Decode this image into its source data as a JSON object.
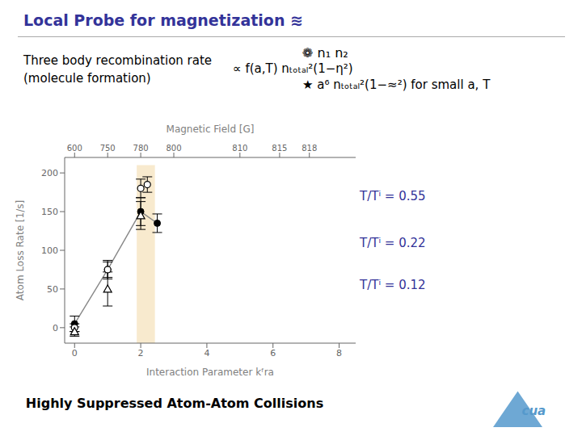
{
  "chart_data": {
    "type": "scatter",
    "title": "Local Probe for magnetization ≋",
    "title_color": "#333399",
    "xlabel": "Interaction Parameter kᶠra",
    "ylabel": "Atom Loss Rate [1/s]",
    "xlim": [
      -0.3,
      8.5
    ],
    "xticks": [
      0,
      2,
      4,
      6,
      8
    ],
    "ylim": [
      -20,
      220
    ],
    "yticks": [
      0,
      50,
      100,
      150,
      200
    ],
    "top_axis": {
      "label": "Magnetic Field [G]",
      "ticks": [
        {
          "value": 0.0,
          "label": "600"
        },
        {
          "value": 1.0,
          "label": "750"
        },
        {
          "value": 2.0,
          "label": "780"
        },
        {
          "value": 3.0,
          "label": "800"
        },
        {
          "value": 5.0,
          "label": "810"
        },
        {
          "value": 6.2,
          "label": "815"
        },
        {
          "value": 7.1,
          "label": "818"
        }
      ]
    },
    "series": [
      {
        "type": "line",
        "color": "#888888",
        "line_style": "solid",
        "x": [
          0.0,
          1.0,
          2.0,
          2.5
        ],
        "values": [
          5,
          75,
          150,
          135
        ]
      },
      {
        "type": "scatter",
        "marker": "circle",
        "color": "#000000",
        "x": [
          0.0,
          1.0,
          2.0,
          2.5
        ],
        "values": [
          5,
          75,
          150,
          135
        ],
        "errors": [
          10,
          12,
          18,
          12
        ]
      },
      {
        "type": "scatter",
        "marker": "open_circle",
        "color": "#000000",
        "x": [
          0.0,
          1.0,
          2.0,
          2.2
        ],
        "values": [
          0,
          75,
          180,
          185
        ],
        "errors": [
          5,
          10,
          12,
          10
        ]
      },
      {
        "type": "scatter",
        "marker": "open_triangle",
        "color": "#000000",
        "x": [
          0.0,
          1.0,
          2.0
        ],
        "values": [
          -5,
          50,
          145
        ],
        "errors": [
          6,
          22,
          18
        ]
      }
    ],
    "shaded_region": {
      "x": [
        1.88,
        2.43
      ],
      "y": [
        -20,
        210
      ],
      "color": "#f5deb3"
    },
    "side_labels": [
      {
        "text": "T/Tⁱ = 0.55",
        "y": 170,
        "color": "#333399"
      },
      {
        "text": "T/Tⁱ = 0.22",
        "y": 110,
        "color": "#333399"
      },
      {
        "text": "T/Tⁱ = 0.12",
        "y": 55,
        "color": "#333399"
      }
    ],
    "annotations": [
      {
        "text": "Three body recombination rate"
      },
      {
        "text": "(molecule formation)"
      },
      {
        "text": "❁ n₁ n₂"
      },
      {
        "text": "∝ f(a,T) nₜₒₜₐₗ²(1−η²)"
      },
      {
        "text": "★ a⁶ nₜₒₜₐₗ²(1−≈²)   for small a, T"
      },
      {
        "text": "Highly Suppressed Atom-Atom Collisions"
      },
      {
        "text": "cua",
        "color": "#5599cc"
      }
    ]
  }
}
